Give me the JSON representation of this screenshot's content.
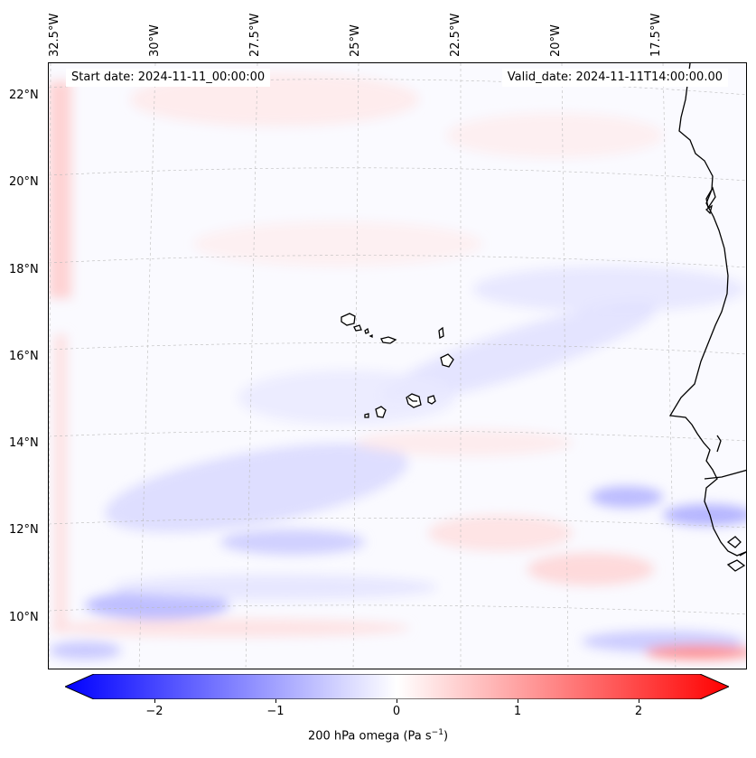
{
  "map": {
    "longitude_labels": [
      "32.5°W",
      "30°W",
      "27.5°W",
      "25°W",
      "22.5°W",
      "20°W",
      "17.5°W"
    ],
    "latitude_labels": [
      "22°N",
      "20°N",
      "18°N",
      "16°N",
      "14°N",
      "12°N",
      "10°N"
    ],
    "start_date": "Start date: 2024-11-11_00:00:00",
    "valid_date": "Valid_date: 2024-11-11T14:00:00.00",
    "colors": {
      "negative": "#0000ff",
      "neutral": "#ffffff",
      "positive": "#ff0000",
      "coastline": "#000000",
      "gridline": "#cccccc"
    }
  },
  "colorbar": {
    "ticks": [
      "−2",
      "−1",
      "0",
      "1",
      "2"
    ],
    "tick_values": [
      -2,
      -1,
      0,
      1,
      2
    ],
    "range": [
      -2.5,
      2.5
    ],
    "label_main": "200 hPa omega (Pa s",
    "label_exp": "−1",
    "label_close": ")"
  }
}
